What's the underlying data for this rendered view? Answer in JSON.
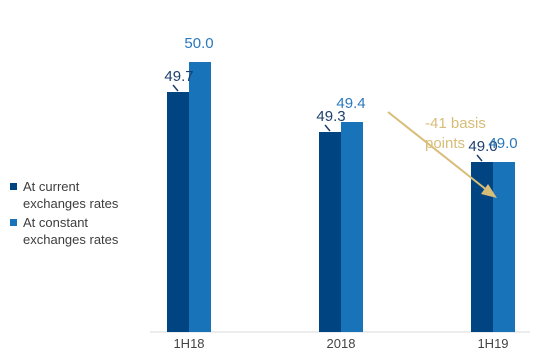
{
  "chart_data": {
    "type": "bar",
    "categories": [
      "1H18",
      "2018",
      "1H19"
    ],
    "series": [
      {
        "name": "At current exchanges rates",
        "values": [
          49.7,
          49.3,
          49.0
        ],
        "color": "#004481"
      },
      {
        "name": "At constant exchanges rates",
        "values": [
          50.0,
          49.4,
          49.0
        ],
        "color": "#1973b8"
      }
    ],
    "ylim": [
      47.3,
      50.15
    ],
    "value_labels": {
      "current": [
        "49.7",
        "49.3",
        "49.0"
      ],
      "constant": [
        "50.0",
        "49.4",
        "49.0"
      ]
    },
    "annotation": {
      "text_line1": "-41 basis",
      "text_line2": "points",
      "color": "#d8bd78"
    },
    "legend_position": "left",
    "grid": false,
    "label_color_current": "#1d3f6e",
    "label_color_constant": "#2a78bb"
  }
}
